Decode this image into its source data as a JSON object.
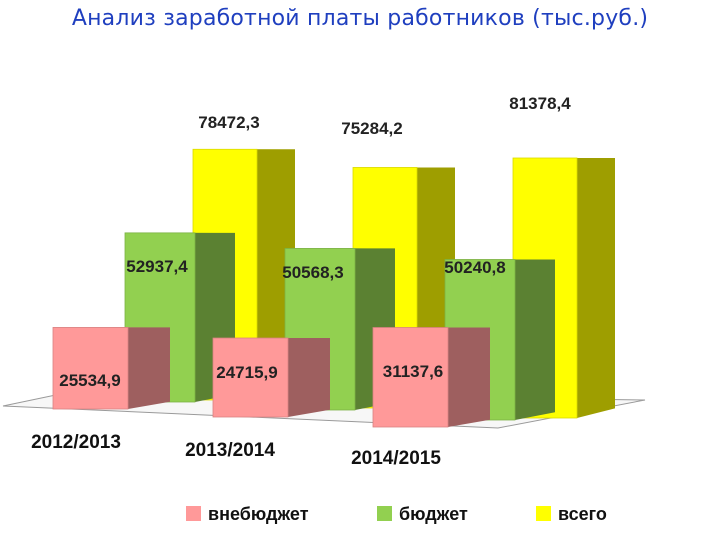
{
  "title": "Анализ заработной платы работников (тыс.руб.)",
  "chart_data": {
    "type": "bar",
    "categories": [
      "2012/2013",
      "2013/2014",
      "2014/2015"
    ],
    "series": [
      {
        "name": "внебюджет",
        "values": [
          25534.9,
          24715.9,
          31137.6
        ],
        "labels": [
          "25534,9",
          "24715,9",
          "31137,6"
        ],
        "color": "#ff9999"
      },
      {
        "name": "бюджет",
        "values": [
          52937.4,
          50568.3,
          50240.8
        ],
        "labels": [
          "52937,4",
          "50568,3",
          "50240,8"
        ],
        "color": "#92d050"
      },
      {
        "name": "всего",
        "values": [
          78472.3,
          75284.2,
          81378.4
        ],
        "labels": [
          "78472,3",
          "75284,2",
          "81378,4"
        ],
        "color": "#ffff00"
      }
    ],
    "style": "3d-clustered-column",
    "grid": false,
    "legend_position": "bottom"
  }
}
